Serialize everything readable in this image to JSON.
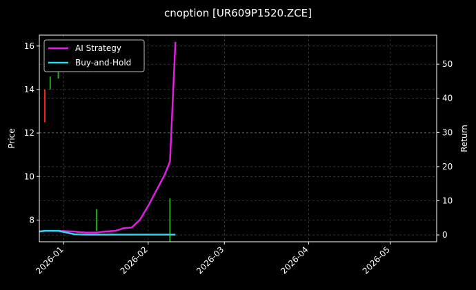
{
  "chart_data": {
    "type": "line",
    "title": "cnoption [UR609P1520.ZCE]",
    "ylabel_left": "Price",
    "ylabel_right": "Return",
    "x_ticks": [
      "2026-01",
      "2026-02",
      "2026-03",
      "2026-04",
      "2026-05"
    ],
    "x_range": [
      "2025-12-23",
      "2026-05-18"
    ],
    "ylim_left": [
      7.0,
      16.5
    ],
    "yticks_left": [
      8,
      10,
      12,
      14,
      16
    ],
    "ylim_right": [
      -2.0,
      58.5
    ],
    "yticks_right": [
      0,
      10,
      20,
      30,
      40,
      50
    ],
    "grid": true,
    "legend_position": "top-left",
    "colors": {
      "background": "#000000",
      "axes": "#ffffff",
      "grid": "#555555",
      "strategy": "#e01fe0",
      "buy_hold": "#29d9f0",
      "up": "#1dab1d",
      "down": "#ff2020"
    },
    "series": [
      {
        "name": "AI Strategy",
        "axis": "right",
        "x": [
          "2025-12-23",
          "2025-12-25",
          "2025-12-30",
          "2026-01-05",
          "2026-01-09",
          "2026-01-13",
          "2026-01-16",
          "2026-01-20",
          "2026-01-23",
          "2026-01-26",
          "2026-01-29",
          "2026-02-01",
          "2026-02-04",
          "2026-02-07",
          "2026-02-09",
          "2026-02-11"
        ],
        "values": [
          1.0,
          1.2,
          1.2,
          1.0,
          0.7,
          0.7,
          1.0,
          1.2,
          2.0,
          2.2,
          4.5,
          8.5,
          13.0,
          17.5,
          21.5,
          56.5
        ]
      },
      {
        "name": "Buy-and-Hold",
        "axis": "right",
        "x": [
          "2025-12-23",
          "2025-12-25",
          "2025-12-30",
          "2026-01-05",
          "2026-01-09",
          "2026-01-20",
          "2026-02-01",
          "2026-02-11"
        ],
        "values": [
          1.0,
          1.2,
          1.2,
          0.2,
          0.1,
          0.1,
          0.1,
          0.1
        ]
      }
    ],
    "candles": [
      {
        "x": "2025-12-25",
        "low": 12.5,
        "high": 14.0,
        "dir": "down"
      },
      {
        "x": "2025-12-27",
        "low": 14.0,
        "high": 14.6,
        "dir": "up"
      },
      {
        "x": "2025-12-30",
        "low": 14.5,
        "high": 14.8,
        "dir": "up"
      },
      {
        "x": "2026-01-13",
        "low": 7.5,
        "high": 8.5,
        "dir": "up"
      },
      {
        "x": "2026-02-09",
        "low": 7.0,
        "high": 9.0,
        "dir": "up"
      }
    ]
  }
}
